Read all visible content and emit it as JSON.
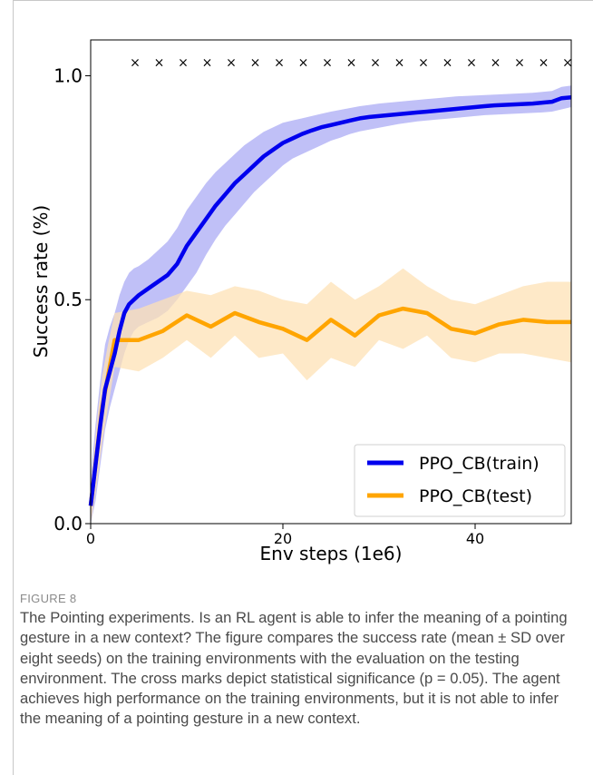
{
  "chart_data": {
    "type": "line",
    "title": "",
    "xlabel": "Env steps (1e6)",
    "ylabel": "Success rate (%)",
    "xlim": [
      0,
      50
    ],
    "ylim": [
      0,
      1.08
    ],
    "xticks": [
      0,
      20,
      40
    ],
    "yticks": [
      0.0,
      0.5,
      1.0
    ],
    "xtick_labels": [
      "0",
      "20",
      "40"
    ],
    "ytick_labels": [
      "0.0",
      "0.5",
      "1.0"
    ],
    "legend_position": "lower-right",
    "grid": false,
    "series": [
      {
        "name": "PPO_CB(train)",
        "color": "#0000ee",
        "band_color": "#8c8cf0",
        "x": [
          0,
          0.5,
          1,
          1.5,
          2,
          2.5,
          3,
          3.5,
          4,
          4.5,
          5,
          6,
          7,
          8,
          9,
          10,
          11,
          12,
          13,
          14,
          15,
          16,
          17,
          18,
          19,
          20,
          21,
          22,
          23,
          24,
          25,
          26,
          27,
          28,
          29,
          30,
          31,
          32,
          33,
          34,
          35,
          36,
          37,
          38,
          39,
          40,
          41,
          42,
          43,
          44,
          45,
          46,
          47,
          48,
          49,
          50
        ],
        "mean": [
          0.04,
          0.13,
          0.22,
          0.3,
          0.34,
          0.38,
          0.43,
          0.47,
          0.49,
          0.5,
          0.51,
          0.525,
          0.54,
          0.555,
          0.58,
          0.62,
          0.65,
          0.68,
          0.71,
          0.735,
          0.76,
          0.78,
          0.8,
          0.82,
          0.835,
          0.85,
          0.86,
          0.87,
          0.878,
          0.885,
          0.89,
          0.895,
          0.9,
          0.905,
          0.908,
          0.91,
          0.912,
          0.914,
          0.916,
          0.918,
          0.92,
          0.922,
          0.924,
          0.926,
          0.928,
          0.93,
          0.932,
          0.934,
          0.935,
          0.936,
          0.937,
          0.938,
          0.94,
          0.942,
          0.95,
          0.952
        ],
        "lower": [
          0.0,
          0.05,
          0.13,
          0.21,
          0.26,
          0.3,
          0.34,
          0.38,
          0.41,
          0.43,
          0.44,
          0.45,
          0.46,
          0.475,
          0.5,
          0.53,
          0.56,
          0.6,
          0.635,
          0.665,
          0.69,
          0.715,
          0.74,
          0.76,
          0.78,
          0.8,
          0.815,
          0.825,
          0.835,
          0.845,
          0.855,
          0.862,
          0.87,
          0.876,
          0.88,
          0.884,
          0.888,
          0.892,
          0.895,
          0.898,
          0.9,
          0.902,
          0.904,
          0.906,
          0.908,
          0.91,
          0.912,
          0.913,
          0.914,
          0.915,
          0.916,
          0.917,
          0.918,
          0.92,
          0.925,
          0.93
        ],
        "upper": [
          0.1,
          0.22,
          0.32,
          0.4,
          0.44,
          0.47,
          0.51,
          0.54,
          0.56,
          0.57,
          0.575,
          0.59,
          0.61,
          0.63,
          0.66,
          0.7,
          0.73,
          0.76,
          0.785,
          0.805,
          0.825,
          0.845,
          0.86,
          0.875,
          0.885,
          0.895,
          0.9,
          0.905,
          0.91,
          0.915,
          0.92,
          0.924,
          0.928,
          0.932,
          0.935,
          0.938,
          0.94,
          0.942,
          0.944,
          0.946,
          0.948,
          0.95,
          0.952,
          0.954,
          0.955,
          0.956,
          0.957,
          0.958,
          0.959,
          0.96,
          0.961,
          0.962,
          0.964,
          0.966,
          0.975,
          0.978
        ]
      },
      {
        "name": "PPO_CB(test)",
        "color": "#ffa500",
        "band_color": "#fde2b5",
        "x": [
          0,
          0.6,
          1.2,
          1.8,
          2.5,
          5,
          7.5,
          10,
          12.5,
          15,
          17.5,
          20,
          22.5,
          25,
          27.5,
          30,
          32.5,
          35,
          37.5,
          40,
          42.5,
          45,
          47.5,
          50
        ],
        "mean": [
          0.04,
          0.15,
          0.26,
          0.33,
          0.41,
          0.41,
          0.43,
          0.465,
          0.44,
          0.47,
          0.45,
          0.435,
          0.41,
          0.455,
          0.42,
          0.465,
          0.48,
          0.47,
          0.435,
          0.425,
          0.445,
          0.455,
          0.45,
          0.45
        ],
        "lower": [
          0.0,
          0.08,
          0.18,
          0.26,
          0.35,
          0.34,
          0.37,
          0.41,
          0.37,
          0.42,
          0.37,
          0.38,
          0.32,
          0.37,
          0.35,
          0.41,
          0.39,
          0.42,
          0.37,
          0.36,
          0.38,
          0.38,
          0.37,
          0.36
        ],
        "upper": [
          0.08,
          0.22,
          0.33,
          0.4,
          0.47,
          0.48,
          0.5,
          0.52,
          0.51,
          0.53,
          0.52,
          0.5,
          0.49,
          0.54,
          0.5,
          0.53,
          0.57,
          0.53,
          0.5,
          0.49,
          0.51,
          0.53,
          0.54,
          0.54
        ]
      }
    ],
    "significance_markers": {
      "symbol": "×",
      "y": 1.03,
      "x": [
        5,
        7.5,
        10,
        12.5,
        15,
        17.5,
        20,
        22.5,
        25,
        27.5,
        30,
        32.5,
        35,
        37.5,
        40,
        42.5,
        45,
        47.5,
        50
      ]
    }
  },
  "caption": {
    "label": "FIGURE 8",
    "text": "The Pointing experiments. Is an RL agent is able to infer the meaning of a pointing gesture in a new context? The figure compares the success rate (mean ± SD over eight seeds) on the training environments with the evaluation on the testing environment. The cross marks depict statistical significance (p = 0.05). The agent achieves high performance on the training environments, but it is not able to infer the meaning of a pointing gesture in a new context."
  }
}
